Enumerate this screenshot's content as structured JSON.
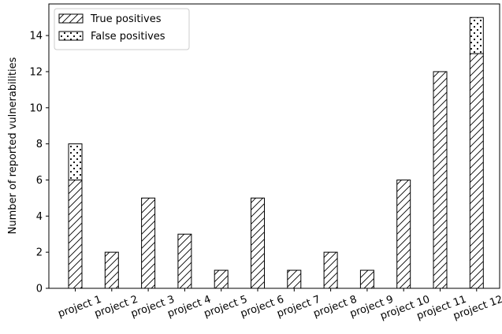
{
  "chart_data": {
    "type": "bar",
    "stacked": true,
    "categories": [
      "project 1",
      "project 2",
      "project 3",
      "project 4",
      "project 5",
      "project 6",
      "project 7",
      "project 8",
      "project 9",
      "project 10",
      "project 11",
      "project 12"
    ],
    "series": [
      {
        "name": "True positives",
        "values": [
          6,
          2,
          5,
          3,
          1,
          5,
          1,
          2,
          1,
          6,
          12,
          13
        ],
        "pattern": "diagonal-hatch"
      },
      {
        "name": "False positives",
        "values": [
          2,
          0,
          0,
          0,
          0,
          0,
          0,
          0,
          0,
          0,
          0,
          2
        ],
        "pattern": "dots"
      }
    ],
    "xlabel": "",
    "ylabel": "Number of reported vulnerabilities",
    "ylim": [
      0,
      15.75
    ],
    "yticks": [
      0,
      2,
      4,
      6,
      8,
      10,
      12,
      14
    ],
    "legend_position": "top-left",
    "grid": false,
    "colors": {
      "bar_fill": "#ffffff",
      "bar_edge": "#000000"
    }
  }
}
